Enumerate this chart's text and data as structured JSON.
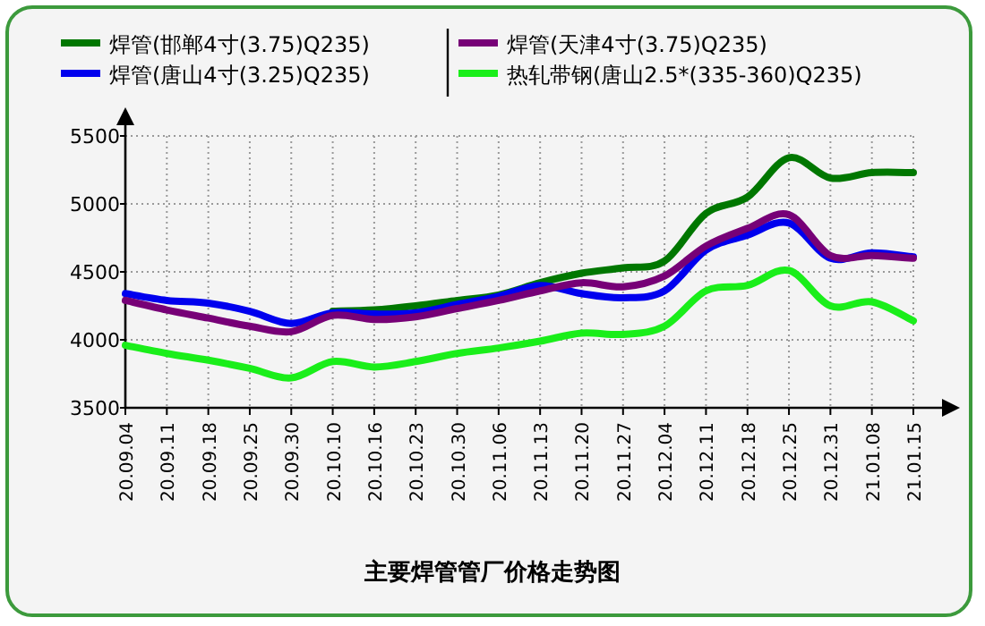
{
  "chart_data": {
    "type": "line",
    "title": "主要焊管管厂价格走势图",
    "categories": [
      "20.09.04",
      "20.09.11",
      "20.09.18",
      "20.09.25",
      "20.09.30",
      "20.10.10",
      "20.10.16",
      "20.10.23",
      "20.10.30",
      "20.11.06",
      "20.11.13",
      "20.11.20",
      "20.11.27",
      "20.12.04",
      "20.12.11",
      "20.12.18",
      "20.12.25",
      "20.12.31",
      "21.01.08",
      "21.01.15"
    ],
    "series": [
      {
        "name": "焊管(邯郸4寸(3.75)Q235)",
        "color": "#007700",
        "values": [
          null,
          null,
          null,
          null,
          null,
          4210,
          4220,
          4250,
          4290,
          4330,
          4420,
          4490,
          4530,
          4580,
          4930,
          5050,
          5340,
          5190,
          5230,
          5230
        ]
      },
      {
        "name": "焊管(唐山4寸(3.25)Q235)",
        "color": "#0000ee",
        "values": [
          4340,
          4290,
          4270,
          4210,
          4120,
          4200,
          4190,
          4200,
          4260,
          4320,
          4400,
          4340,
          4310,
          4360,
          4660,
          4770,
          4860,
          4600,
          4640,
          4610
        ]
      },
      {
        "name": "焊管(天津4寸(3.75)Q235)",
        "color": "#770077",
        "values": [
          4290,
          4220,
          4160,
          4100,
          4060,
          4180,
          4150,
          4170,
          4230,
          4290,
          4360,
          4420,
          4390,
          4470,
          4690,
          4820,
          4920,
          4620,
          4620,
          4600
        ]
      },
      {
        "name": "热轧带钢(唐山2.5*(335-360)Q235)",
        "color": "#1aee1a",
        "values": [
          3960,
          3900,
          3850,
          3790,
          3720,
          3840,
          3800,
          3840,
          3900,
          3940,
          3990,
          4050,
          4040,
          4100,
          4360,
          4400,
          4510,
          4250,
          4280,
          4140
        ]
      }
    ],
    "ylim": [
      3500,
      5500
    ],
    "yticks": [
      3500,
      4000,
      4500,
      5000,
      5500
    ],
    "grid": true,
    "legend": "top"
  }
}
